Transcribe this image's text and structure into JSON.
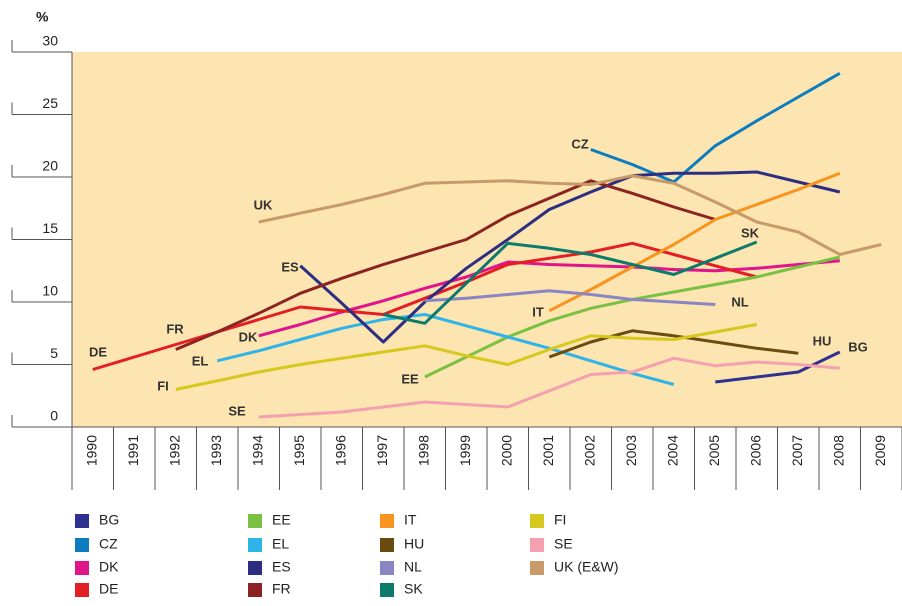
{
  "chart_data": {
    "type": "line",
    "y_label": "%",
    "categories": [
      "1990",
      "1991",
      "1992",
      "1993",
      "1994",
      "1995",
      "1996",
      "1997",
      "1998",
      "1999",
      "2000",
      "2001",
      "2002",
      "2003",
      "2004",
      "2005",
      "2006",
      "2007",
      "2008",
      "2009"
    ],
    "ylim": [
      0,
      30
    ],
    "yticks": [
      0,
      5,
      10,
      15,
      20,
      25,
      30
    ],
    "legend": "bottom",
    "series": [
      {
        "name": "BG",
        "label": "BG",
        "color": "#2e3192",
        "values": [
          null,
          null,
          null,
          null,
          null,
          null,
          null,
          null,
          null,
          null,
          null,
          null,
          null,
          null,
          null,
          3.6,
          4.0,
          4.4,
          6.0,
          null
        ]
      },
      {
        "name": "CZ",
        "label": "CZ",
        "color": "#0b7dbf",
        "values": [
          null,
          null,
          null,
          null,
          null,
          null,
          null,
          null,
          null,
          null,
          null,
          null,
          22.2,
          21.0,
          19.6,
          22.5,
          24.5,
          26.4,
          28.3,
          null
        ]
      },
      {
        "name": "DK",
        "label": "DK",
        "color": "#e0158c",
        "values": [
          null,
          null,
          null,
          null,
          7.3,
          8.2,
          9.2,
          10.1,
          11.1,
          12.0,
          13.2,
          13.0,
          12.9,
          12.8,
          12.6,
          12.5,
          12.7,
          13.0,
          13.3,
          null
        ]
      },
      {
        "name": "DE",
        "label": "DE",
        "color": "#e31e25",
        "values": [
          4.6,
          5.6,
          6.6,
          7.6,
          8.6,
          9.6,
          9.3,
          9.0,
          10.3,
          11.6,
          13.0,
          13.5,
          14.0,
          14.7,
          13.8,
          12.9,
          12.0,
          null,
          null,
          null
        ]
      },
      {
        "name": "EE",
        "label": "EE",
        "color": "#7ac143",
        "values": [
          null,
          null,
          null,
          null,
          null,
          null,
          null,
          null,
          4.0,
          5.6,
          7.2,
          8.5,
          9.5,
          10.2,
          10.8,
          11.4,
          12.0,
          12.8,
          13.6,
          null
        ]
      },
      {
        "name": "EL",
        "label": "EL",
        "color": "#2eb4e8",
        "values": [
          null,
          null,
          null,
          5.3,
          6.1,
          7.0,
          7.9,
          8.6,
          9.0,
          8.1,
          7.2,
          6.3,
          5.3,
          4.3,
          3.4,
          null,
          null,
          null,
          null,
          null
        ]
      },
      {
        "name": "ES",
        "label": "ES",
        "color": "#2b2e83",
        "values": [
          null,
          null,
          null,
          null,
          null,
          12.9,
          9.9,
          6.8,
          10.0,
          12.7,
          15.0,
          17.4,
          18.8,
          20.1,
          20.3,
          20.3,
          20.4,
          19.6,
          18.8,
          null
        ]
      },
      {
        "name": "FR",
        "label": "FR",
        "color": "#8b2323",
        "values": [
          null,
          null,
          6.2,
          7.6,
          9.1,
          10.7,
          11.9,
          13.0,
          14.0,
          15.0,
          16.9,
          18.3,
          19.7,
          18.7,
          17.6,
          16.6,
          null,
          null,
          null,
          null
        ]
      },
      {
        "name": "IT",
        "label": "IT",
        "color": "#f7941d",
        "values": [
          null,
          null,
          null,
          null,
          null,
          null,
          null,
          null,
          null,
          null,
          null,
          9.3,
          11.0,
          12.8,
          14.6,
          16.6,
          17.8,
          19.0,
          20.3,
          null
        ]
      },
      {
        "name": "HU",
        "label": "HU",
        "color": "#6b4c10",
        "values": [
          null,
          null,
          null,
          null,
          null,
          null,
          null,
          null,
          null,
          null,
          null,
          5.6,
          6.8,
          7.7,
          7.3,
          6.8,
          6.3,
          5.9,
          null,
          null
        ]
      },
      {
        "name": "NL",
        "label": "NL",
        "color": "#8a86c4",
        "values": [
          null,
          null,
          null,
          null,
          null,
          null,
          null,
          null,
          10.1,
          10.3,
          10.6,
          10.9,
          10.6,
          10.2,
          10.0,
          9.8,
          null,
          null,
          null,
          null
        ]
      },
      {
        "name": "SK",
        "label": "SK",
        "color": "#0c7b6b",
        "values": [
          null,
          null,
          null,
          null,
          null,
          null,
          null,
          9.0,
          8.3,
          11.5,
          14.7,
          14.3,
          13.8,
          13.0,
          12.2,
          13.5,
          14.8,
          null,
          null,
          null
        ]
      },
      {
        "name": "FI",
        "label": "FI",
        "color": "#d6c81c",
        "values": [
          null,
          null,
          3.0,
          3.7,
          4.4,
          5.0,
          5.5,
          6.0,
          6.5,
          5.7,
          5.0,
          6.2,
          7.3,
          7.1,
          7.0,
          7.6,
          8.2,
          null,
          null,
          null
        ]
      },
      {
        "name": "SE",
        "label": "SE",
        "color": "#f5a0b0",
        "values": [
          null,
          null,
          null,
          null,
          0.8,
          1.0,
          1.2,
          1.6,
          2.0,
          1.8,
          1.6,
          2.9,
          4.2,
          4.4,
          5.5,
          4.9,
          5.2,
          5.0,
          4.7,
          null
        ]
      },
      {
        "name": "UK (E&W)",
        "label": "UK",
        "color": "#c89a6a",
        "values": [
          null,
          null,
          null,
          null,
          16.4,
          17.1,
          17.8,
          18.6,
          19.5,
          19.6,
          19.7,
          19.5,
          19.4,
          20.1,
          19.5,
          18.0,
          16.4,
          15.6,
          13.8,
          14.6
        ]
      }
    ]
  }
}
